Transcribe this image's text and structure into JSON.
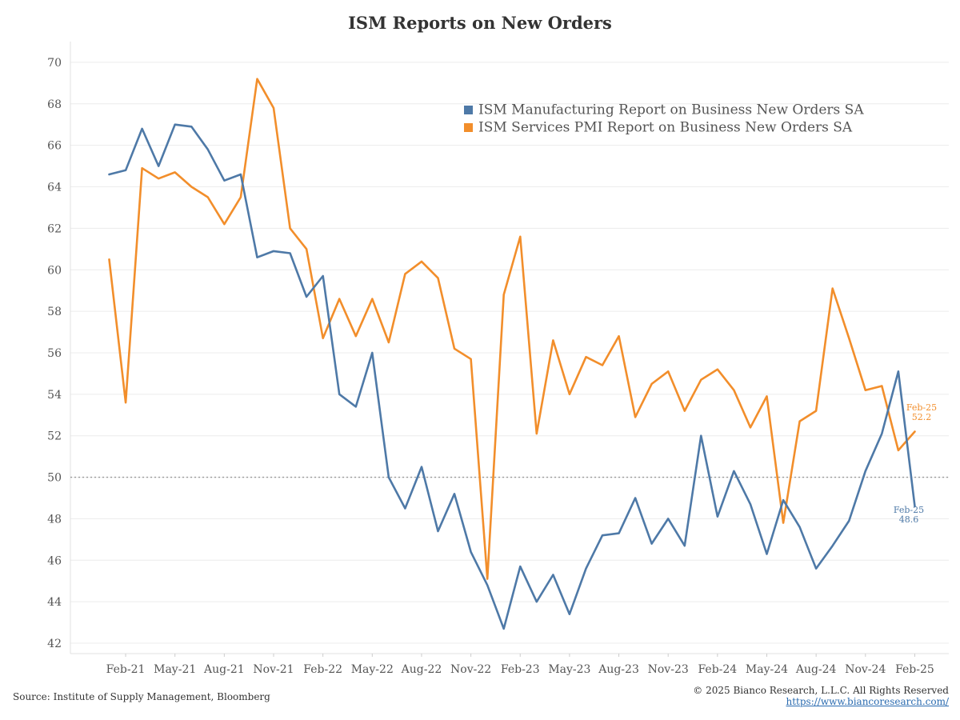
{
  "chart_data": {
    "type": "line",
    "title": "ISM Reports on New Orders",
    "xlabel": "",
    "ylabel": "",
    "ylim": [
      41.5,
      71
    ],
    "yticks": [
      42,
      44,
      46,
      48,
      50,
      52,
      54,
      56,
      58,
      60,
      62,
      64,
      66,
      68,
      70
    ],
    "reference_line": 50,
    "xticks": [
      "Feb-21",
      "May-21",
      "Aug-21",
      "Nov-21",
      "Feb-22",
      "May-22",
      "Aug-22",
      "Nov-22",
      "Feb-23",
      "May-23",
      "Aug-23",
      "Nov-23",
      "Feb-24",
      "May-24",
      "Aug-24",
      "Nov-24",
      "Feb-25"
    ],
    "x_start": "Jan-21",
    "legend_position": "top-right",
    "series": [
      {
        "name": "ISM Manufacturing Report on Business New Orders SA",
        "color": "#4e79a7",
        "values": [
          64.6,
          64.8,
          66.8,
          65.0,
          67.0,
          66.9,
          65.8,
          64.3,
          64.6,
          60.6,
          60.9,
          60.8,
          58.7,
          59.7,
          54.0,
          53.4,
          56.0,
          50.0,
          48.5,
          50.5,
          47.4,
          49.2,
          46.4,
          44.8,
          42.7,
          45.7,
          44.0,
          45.3,
          43.4,
          45.6,
          47.2,
          47.3,
          49.0,
          46.8,
          48.0,
          46.7,
          52.0,
          48.1,
          50.3,
          48.7,
          46.3,
          48.9,
          47.6,
          45.6,
          46.7,
          47.9,
          50.3,
          52.1,
          55.1,
          48.6
        ],
        "end_label": "Feb-25",
        "end_value_label": "48.6"
      },
      {
        "name": "ISM Services PMI Report on Business New Orders SA",
        "color": "#f28e2b",
        "values": [
          60.5,
          53.6,
          64.9,
          64.4,
          64.7,
          64.0,
          63.5,
          62.2,
          63.5,
          69.2,
          67.8,
          62.0,
          61.0,
          56.7,
          58.6,
          56.8,
          58.6,
          56.5,
          59.8,
          60.4,
          59.6,
          56.2,
          55.7,
          45.1,
          58.8,
          61.6,
          52.1,
          56.6,
          54.0,
          55.8,
          55.4,
          56.8,
          52.9,
          54.5,
          55.1,
          53.2,
          54.7,
          55.2,
          54.2,
          52.4,
          53.9,
          47.8,
          52.7,
          53.2,
          59.1,
          56.7,
          54.2,
          54.4,
          51.3,
          52.2
        ],
        "end_label": "Feb-25",
        "end_value_label": "52.2"
      }
    ]
  },
  "footer": {
    "source": "Source: Institute of Supply Management, Bloomberg",
    "copyright": "© 2025 Bianco Research, L.L.C. All Rights Reserved",
    "url": "https://www.biancoresearch.com/"
  }
}
